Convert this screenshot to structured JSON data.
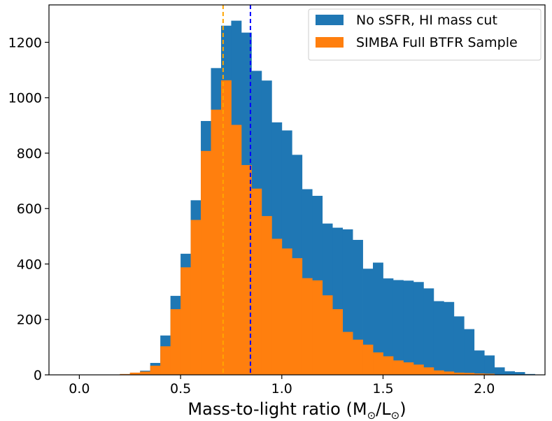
{
  "chart_data": {
    "type": "histogram",
    "title": "",
    "xlabel": "Mass-to-light ratio (M",
    "xlabel_sub1": "⊙",
    "xlabel_mid": "/L",
    "xlabel_sub2": "⊙",
    "xlabel_end": ")",
    "ylabel": "",
    "xlim": [
      -0.15,
      2.3
    ],
    "ylim": [
      0,
      1335
    ],
    "xticks": [
      0.0,
      0.5,
      1.0,
      1.5,
      2.0
    ],
    "xtick_labels": [
      "0.0",
      "0.5",
      "1.0",
      "1.5",
      "2.0"
    ],
    "yticks": [
      0,
      200,
      400,
      600,
      800,
      1000,
      1200
    ],
    "ytick_labels": [
      "0",
      "200",
      "400",
      "600",
      "800",
      "1000",
      "1200"
    ],
    "grid": false,
    "legend_position": "top-right",
    "bin_start": 0.0,
    "bin_width": 0.05,
    "series": [
      {
        "name": "No sSFR, HI mass cut",
        "color": "#1f77b4",
        "values": [
          0,
          0,
          0,
          0,
          0,
          7,
          15,
          43,
          142,
          285,
          437,
          630,
          916,
          1107,
          1260,
          1278,
          1235,
          1097,
          1062,
          911,
          882,
          794,
          670,
          646,
          546,
          531,
          525,
          487,
          383,
          405,
          348,
          342,
          340,
          335,
          312,
          266,
          263,
          211,
          165,
          88,
          70,
          27,
          13,
          10,
          3
        ]
      },
      {
        "name": "SIMBA Full BTFR Sample",
        "color": "#ff7f0e",
        "values": [
          0,
          0,
          0,
          0,
          3,
          8,
          12,
          33,
          103,
          237,
          388,
          559,
          808,
          957,
          1063,
          902,
          757,
          672,
          573,
          491,
          456,
          421,
          349,
          341,
          287,
          237,
          155,
          127,
          109,
          81,
          67,
          52,
          45,
          37,
          27,
          16,
          12,
          8,
          7,
          5,
          4,
          1,
          0,
          0,
          0
        ]
      }
    ],
    "vlines": [
      {
        "x": 0.71,
        "color": "#ffa500",
        "style": "dashed"
      },
      {
        "x": 0.845,
        "color": "#0000ff",
        "style": "dashed"
      }
    ]
  }
}
